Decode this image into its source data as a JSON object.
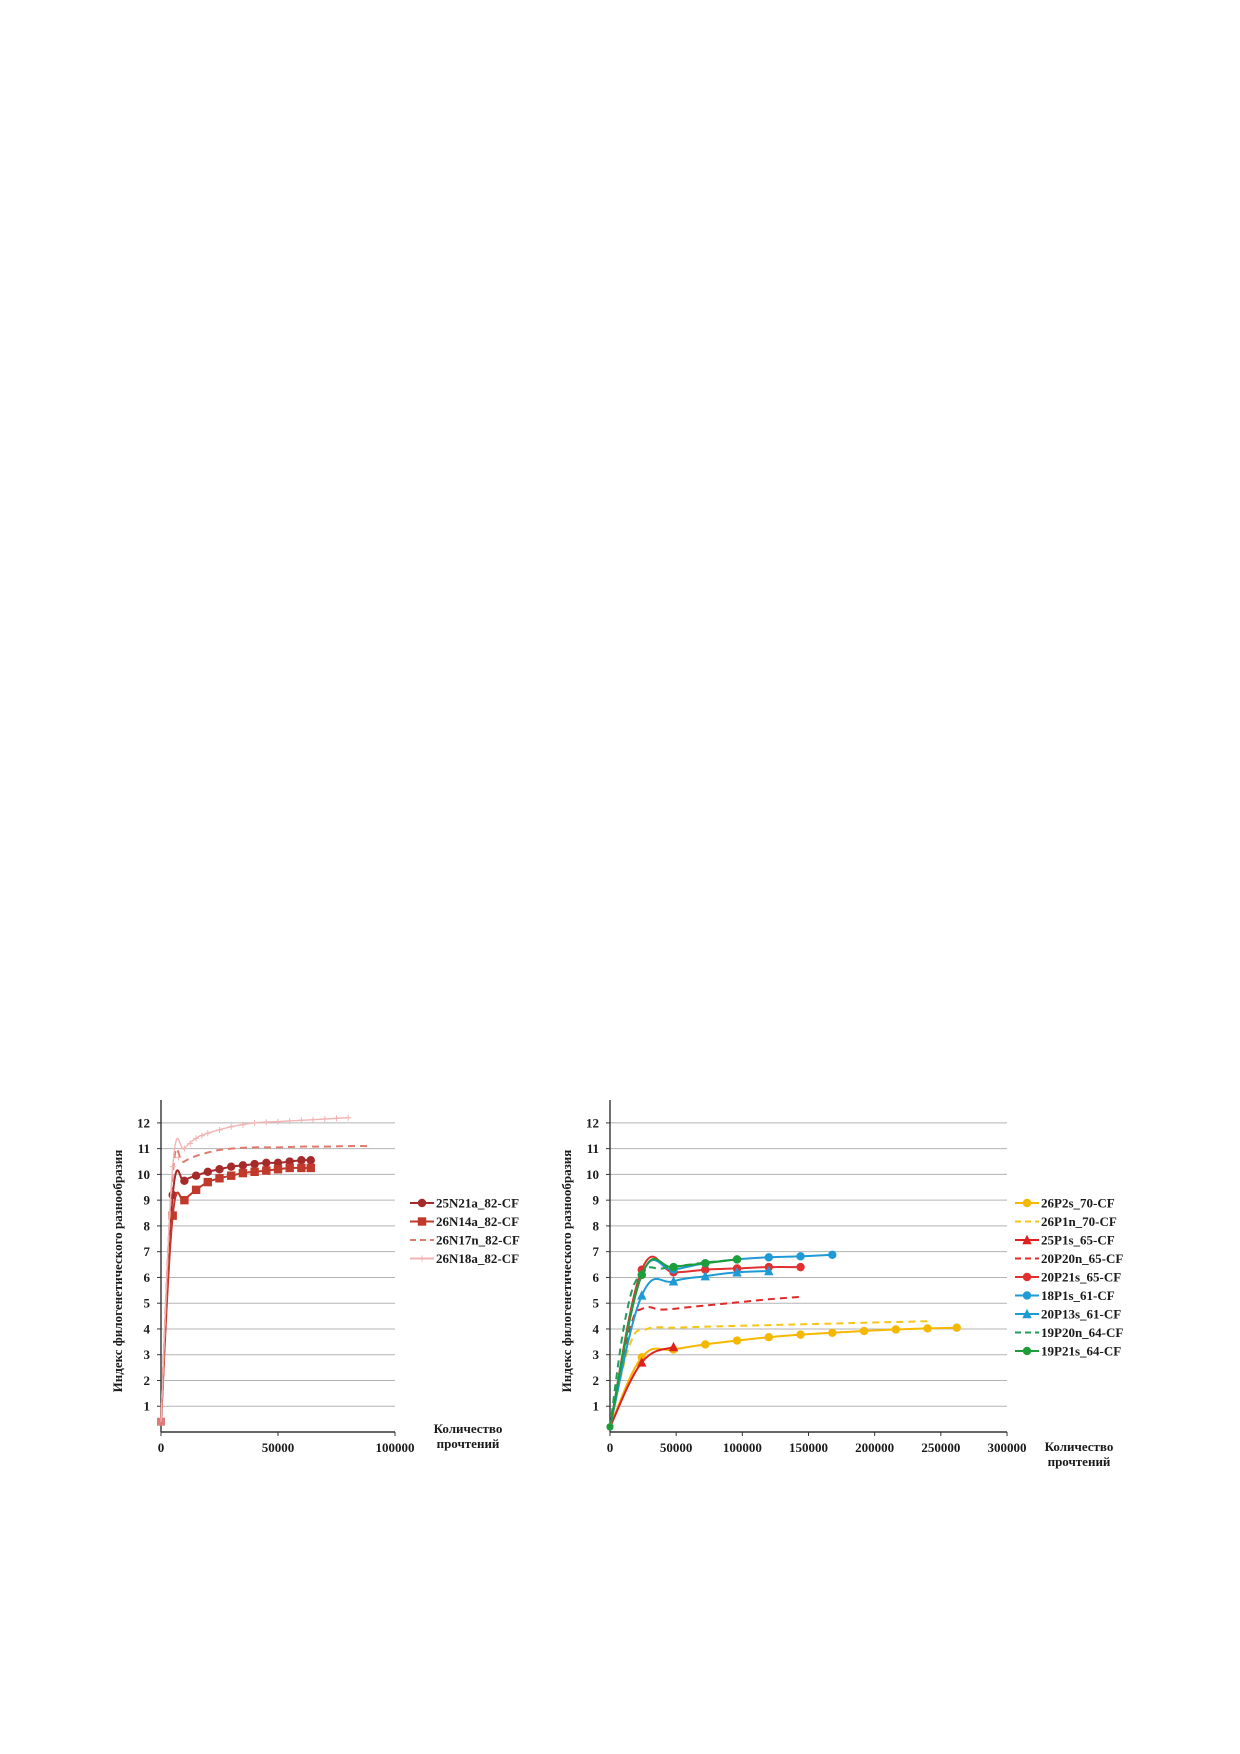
{
  "chart_data": [
    {
      "type": "line",
      "title": "",
      "xlabel": [
        "Количество",
        "прочтений"
      ],
      "ylabel": "Индекс филогенетического разнообразия",
      "xlim": [
        0,
        100000
      ],
      "ylim": [
        0,
        12.5
      ],
      "x_ticks": [
        "0",
        "50000",
        "100000"
      ],
      "y_ticks": [
        "1",
        "2",
        "3",
        "4",
        "5",
        "6",
        "7",
        "8",
        "9",
        "10",
        "11",
        "12"
      ],
      "grid": "horizontal",
      "legend_position": "right",
      "series": [
        {
          "name": "25N21a_82-CF",
          "color": "#a52a2a",
          "style": "solid",
          "marker": "circle",
          "x": [
            0,
            5000,
            10000,
            15000,
            20000,
            25000,
            30000,
            35000,
            40000,
            45000,
            50000,
            55000,
            60000,
            64000
          ],
          "y": [
            0.4,
            9.2,
            9.75,
            9.95,
            10.1,
            10.2,
            10.3,
            10.35,
            10.4,
            10.45,
            10.45,
            10.5,
            10.55,
            10.55
          ]
        },
        {
          "name": "26N14a_82-CF",
          "color": "#c0392b",
          "style": "solid",
          "marker": "square",
          "x": [
            0,
            5000,
            10000,
            15000,
            20000,
            25000,
            30000,
            35000,
            40000,
            45000,
            50000,
            55000,
            60000,
            64000
          ],
          "y": [
            0.4,
            8.4,
            9.0,
            9.4,
            9.7,
            9.85,
            9.95,
            10.05,
            10.1,
            10.15,
            10.2,
            10.25,
            10.25,
            10.25
          ]
        },
        {
          "name": "26N17n_82-CF",
          "color": "#e07a6e",
          "style": "dashed",
          "marker": "none",
          "x": [
            0,
            5000,
            10000,
            20000,
            30000,
            40000,
            50000,
            60000,
            70000,
            80000,
            90000
          ],
          "y": [
            0.4,
            10.0,
            10.5,
            10.85,
            11.0,
            11.05,
            11.05,
            11.08,
            11.08,
            11.1,
            11.1
          ]
        },
        {
          "name": "26N18a_82-CF",
          "color": "#f2b3b3",
          "style": "solid",
          "marker": "plus",
          "x": [
            0,
            5000,
            10000,
            15000,
            20000,
            30000,
            40000,
            50000,
            60000,
            70000,
            80000
          ],
          "y": [
            0.4,
            10.3,
            11.0,
            11.4,
            11.6,
            11.85,
            12.0,
            12.05,
            12.1,
            12.15,
            12.2
          ]
        }
      ]
    },
    {
      "type": "line",
      "title": "",
      "xlabel": [
        "Количество",
        "прочтений"
      ],
      "ylabel": "Индекс филогенетического разнообразия",
      "xlim": [
        0,
        300000
      ],
      "ylim": [
        0,
        12.5
      ],
      "x_ticks": [
        "0",
        "50000",
        "100000",
        "150000",
        "200000",
        "250000",
        "300000"
      ],
      "y_ticks": [
        "1",
        "2",
        "3",
        "4",
        "5",
        "6",
        "7",
        "8",
        "9",
        "10",
        "11",
        "12"
      ],
      "grid": "horizontal",
      "legend_position": "right",
      "series": [
        {
          "name": "26P2s_70-CF",
          "color": "#f5b800",
          "style": "solid",
          "marker": "circle",
          "x": [
            0,
            24000,
            48000,
            72000,
            96000,
            120000,
            144000,
            168000,
            192000,
            216000,
            240000,
            262000
          ],
          "y": [
            0.2,
            2.9,
            3.2,
            3.4,
            3.55,
            3.68,
            3.78,
            3.85,
            3.92,
            3.98,
            4.02,
            4.05
          ]
        },
        {
          "name": "26P1n_70-CF",
          "color": "#f5c518",
          "style": "dashed",
          "marker": "none",
          "x": [
            0,
            15000,
            28000,
            50000,
            80000,
            120000,
            160000,
            200000,
            240000
          ],
          "y": [
            0.2,
            3.4,
            4.0,
            4.05,
            4.1,
            4.15,
            4.2,
            4.25,
            4.3
          ]
        },
        {
          "name": "25P1s_65-CF",
          "color": "#e02020",
          "style": "solid",
          "marker": "triangle",
          "x": [
            0,
            24000,
            48000
          ],
          "y": [
            0.2,
            2.7,
            3.3
          ]
        },
        {
          "name": "20P20n_65-CF",
          "color": "#e02a2a",
          "style": "dashed",
          "marker": "none",
          "x": [
            0,
            15000,
            25000,
            40000,
            60000,
            80000,
            100000,
            120000,
            145000
          ],
          "y": [
            0.2,
            4.0,
            4.8,
            4.75,
            4.85,
            4.95,
            5.05,
            5.15,
            5.25
          ]
        },
        {
          "name": "20P21s_65-CF",
          "color": "#e03030",
          "style": "solid",
          "marker": "circle",
          "x": [
            0,
            24000,
            48000,
            72000,
            96000,
            120000,
            144000
          ],
          "y": [
            0.2,
            6.3,
            6.2,
            6.3,
            6.35,
            6.4,
            6.4
          ]
        },
        {
          "name": "18P1s_61-CF",
          "color": "#1e9ad6",
          "style": "solid",
          "marker": "circle",
          "x": [
            0,
            24000,
            48000,
            72000,
            96000,
            120000,
            144000,
            168000
          ],
          "y": [
            0.2,
            6.1,
            6.3,
            6.55,
            6.7,
            6.78,
            6.82,
            6.88
          ]
        },
        {
          "name": "20P13s_61-CF",
          "color": "#1e9ad6",
          "style": "solid",
          "marker": "triangle",
          "x": [
            0,
            24000,
            48000,
            72000,
            96000,
            120000
          ],
          "y": [
            0.2,
            5.3,
            5.85,
            6.05,
            6.2,
            6.25
          ]
        },
        {
          "name": "19P20n_64-CF",
          "color": "#1e9e5a",
          "style": "dashed",
          "marker": "none",
          "x": [
            0,
            12000,
            24000,
            40000,
            60000,
            80000,
            100000
          ],
          "y": [
            0.2,
            4.5,
            6.2,
            6.35,
            6.5,
            6.62,
            6.7
          ]
        },
        {
          "name": "19P21s_64-CF",
          "color": "#1e9e3a",
          "style": "solid",
          "marker": "circle",
          "x": [
            0,
            24000,
            48000,
            72000,
            96000
          ],
          "y": [
            0.2,
            6.1,
            6.4,
            6.55,
            6.7
          ]
        }
      ]
    }
  ]
}
